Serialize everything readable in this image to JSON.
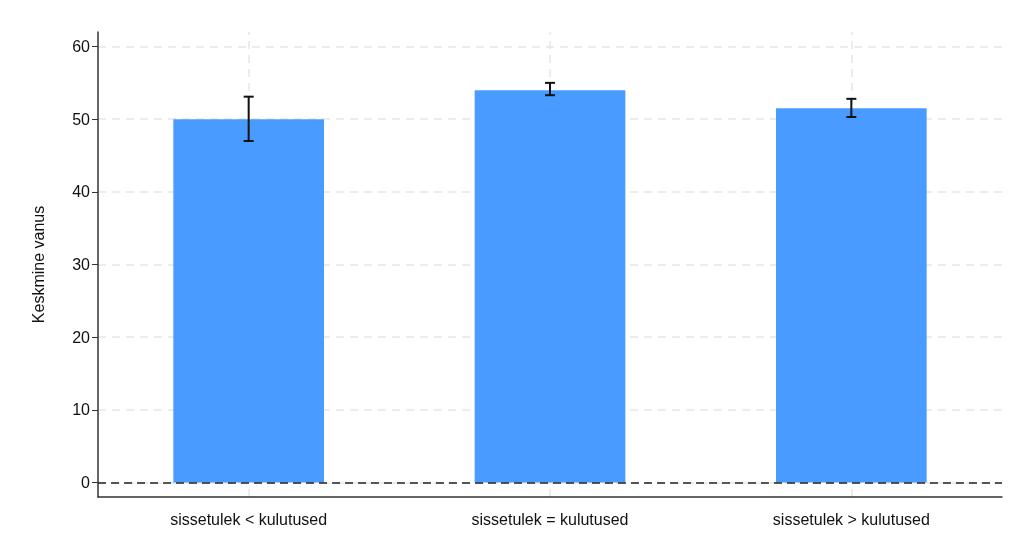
{
  "chart_data": {
    "type": "bar",
    "ylabel": "Keskmine vanus",
    "categories": [
      "sissetulek < kulutused",
      "sissetulek = kulutused",
      "sissetulek > kulutused"
    ],
    "values": [
      50,
      54,
      51.5
    ],
    "color": "#4a9bff",
    "errors": [
      [
        47,
        53.1
      ],
      [
        53.3,
        55
      ],
      [
        50.3,
        52.8
      ]
    ],
    "ylim": [
      -2,
      62
    ],
    "yticks": [
      0,
      10,
      20,
      30,
      40,
      50,
      60
    ],
    "grid": true,
    "ref_lines": [
      {
        "axis": "y",
        "value": 0,
        "label": null,
        "color": "#222222",
        "line_style": "dashed"
      }
    ]
  }
}
